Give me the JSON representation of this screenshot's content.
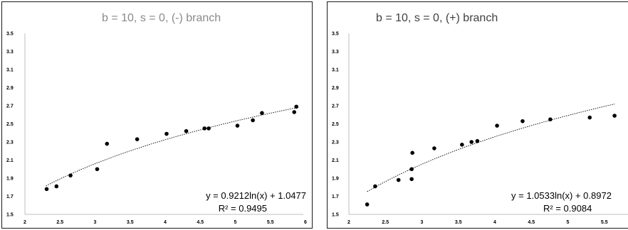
{
  "chart_data": [
    {
      "type": "scatter",
      "title": "b = 10, s = 0, (-) branch",
      "xlim": [
        2,
        6
      ],
      "ylim": [
        1.5,
        3.5
      ],
      "x_ticks": [
        "2",
        "2.5",
        "3",
        "3.5",
        "4",
        "4.5",
        "5",
        "5.5",
        "6"
      ],
      "y_ticks": [
        "1.5",
        "1.7",
        "1.9",
        "2.1",
        "2.3",
        "2.5",
        "2.7",
        "2.9",
        "3.1",
        "3.3",
        "3.5"
      ],
      "grid": false,
      "points": [
        {
          "x": 2.31,
          "y": 1.78
        },
        {
          "x": 2.45,
          "y": 1.81
        },
        {
          "x": 2.65,
          "y": 1.93
        },
        {
          "x": 3.03,
          "y": 2.0
        },
        {
          "x": 3.17,
          "y": 2.28
        },
        {
          "x": 3.6,
          "y": 2.33
        },
        {
          "x": 4.02,
          "y": 2.39
        },
        {
          "x": 4.3,
          "y": 2.42
        },
        {
          "x": 4.56,
          "y": 2.45
        },
        {
          "x": 4.62,
          "y": 2.45
        },
        {
          "x": 5.03,
          "y": 2.48
        },
        {
          "x": 5.25,
          "y": 2.54
        },
        {
          "x": 5.38,
          "y": 2.62
        },
        {
          "x": 5.84,
          "y": 2.63
        },
        {
          "x": 5.87,
          "y": 2.69
        }
      ],
      "trendline": {
        "type": "log",
        "a": 0.9212,
        "b": 1.0477,
        "x_range": [
          2.3,
          5.9
        ]
      },
      "equation": "y = 0.9212ln(x) + 1.0477",
      "r_squared": "R² = 0.9495"
    },
    {
      "type": "scatter",
      "title": "b = 10, s = 0, (+) branch",
      "xlim": [
        2,
        6
      ],
      "ylim": [
        1.5,
        3.5
      ],
      "x_ticks": [
        "2",
        "2.5",
        "3",
        "3.5",
        "4",
        "4.5",
        "5",
        "5.5"
      ],
      "y_ticks": [
        "1.5",
        "1.7",
        "1.9",
        "2.1",
        "2.3",
        "2.5",
        "2.7",
        "2.9",
        "3.1",
        "3.3",
        "3.5"
      ],
      "grid": false,
      "points": [
        {
          "x": 2.25,
          "y": 1.61
        },
        {
          "x": 2.36,
          "y": 1.81
        },
        {
          "x": 2.68,
          "y": 1.88
        },
        {
          "x": 2.86,
          "y": 1.89
        },
        {
          "x": 2.86,
          "y": 2.0
        },
        {
          "x": 2.87,
          "y": 2.18
        },
        {
          "x": 3.17,
          "y": 2.23
        },
        {
          "x": 3.55,
          "y": 2.27
        },
        {
          "x": 3.68,
          "y": 2.3
        },
        {
          "x": 3.76,
          "y": 2.31
        },
        {
          "x": 4.03,
          "y": 2.48
        },
        {
          "x": 4.38,
          "y": 2.53
        },
        {
          "x": 4.76,
          "y": 2.55
        },
        {
          "x": 5.3,
          "y": 2.57
        },
        {
          "x": 5.64,
          "y": 2.59
        }
      ],
      "trendline": {
        "type": "log",
        "a": 1.0533,
        "b": 0.8972,
        "x_range": [
          2.25,
          5.64
        ]
      },
      "equation": "y = 1.0533ln(x) + 0.8972",
      "r_squared": "R² = 0.9084"
    }
  ],
  "colors": {
    "point": "#000000",
    "trendline": "#000000",
    "axis": "#bfbfbf",
    "title_left": "#8a8a8a",
    "title_right": "#404040"
  }
}
